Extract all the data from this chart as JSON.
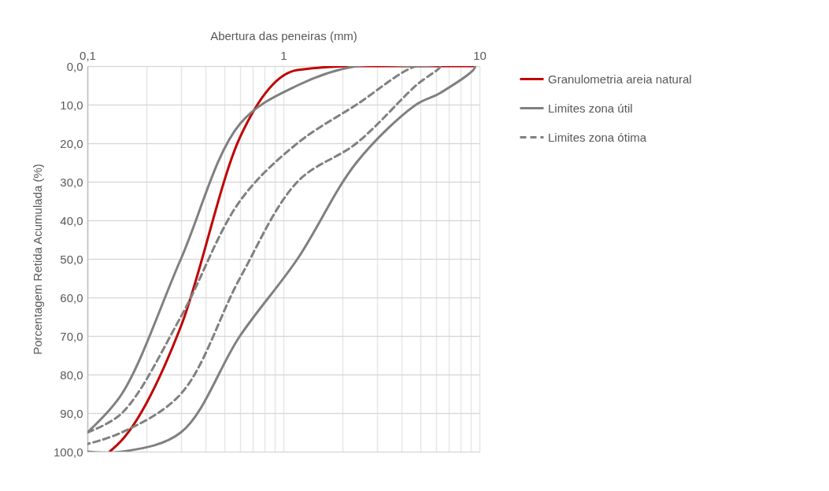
{
  "chart_data": {
    "type": "line",
    "xlabel": "Abertura das peneiras (mm)",
    "ylabel": "Porcentagem Retida Acumulada (%)",
    "log": "x",
    "grid": true,
    "legend": "right",
    "xlim": [
      0.1,
      10
    ],
    "xticks": [
      {
        "value": 0.1,
        "label": "0,1"
      },
      {
        "value": 0.2,
        "label": null
      },
      {
        "value": 0.3,
        "label": null
      },
      {
        "value": 0.4,
        "label": null
      },
      {
        "value": 0.5,
        "label": null
      },
      {
        "value": 0.6,
        "label": null
      },
      {
        "value": 0.7,
        "label": null
      },
      {
        "value": 0.8,
        "label": null
      },
      {
        "value": 0.9,
        "label": null
      },
      1,
      {
        "value": 2,
        "label": null
      },
      {
        "value": 3,
        "label": null
      },
      {
        "value": 4,
        "label": null
      },
      {
        "value": 5,
        "label": null
      },
      {
        "value": 6,
        "label": null
      },
      {
        "value": 7,
        "label": null
      },
      {
        "value": 8,
        "label": null
      },
      {
        "value": 9,
        "label": null
      },
      10
    ],
    "ylim": [
      100,
      0
    ],
    "yticks": [
      {
        "value": 0,
        "label": "0,0"
      },
      {
        "value": 10,
        "label": "10,0"
      },
      {
        "value": 20,
        "label": "20,0"
      },
      {
        "value": 30,
        "label": "30,0"
      },
      {
        "value": 40,
        "label": "40,0"
      },
      {
        "value": 50,
        "label": "50,0"
      },
      {
        "value": 60,
        "label": "60,0"
      },
      {
        "value": 70,
        "label": "70,0"
      },
      {
        "value": 80,
        "label": "80,0"
      },
      {
        "value": 90,
        "label": "90,0"
      },
      {
        "value": 100,
        "label": "100,0"
      }
    ],
    "series": [
      {
        "name": "Granulometria areia natural",
        "color": "#c00000",
        "line_style": "solid",
        "x": [
          0.13,
          0.15,
          0.3,
          0.6,
          1.18,
          2.36,
          4.75,
          9.5
        ],
        "values": [
          100,
          97,
          67.5,
          18.5,
          1,
          0,
          0,
          0
        ]
      },
      {
        "name": "Limites zona útil",
        "color": "#808080",
        "line_style": "solid",
        "x": [
          0.1,
          0.15,
          0.3,
          0.6,
          1.18,
          2.36,
          4.75,
          9.5,
          6.3,
          4.75,
          2.36,
          1.18,
          0.6,
          0.3,
          0.15,
          0.1
        ],
        "values": [
          95,
          85,
          50,
          15,
          5,
          0,
          0,
          0,
          7,
          10,
          25,
          50,
          70,
          95,
          100,
          100
        ]
      },
      {
        "name": "Limites zona ótima",
        "color": "#808080",
        "line_style": "dashed",
        "x": [
          0.1,
          0.15,
          0.3,
          0.6,
          1.18,
          2.36,
          4.75,
          6.3,
          4.75,
          2.36,
          1.18,
          0.6,
          0.3,
          0.15,
          0.1
        ],
        "values": [
          95,
          90,
          65,
          35,
          20,
          10,
          0,
          0,
          5,
          20,
          30,
          55,
          85,
          95,
          98
        ]
      }
    ]
  }
}
